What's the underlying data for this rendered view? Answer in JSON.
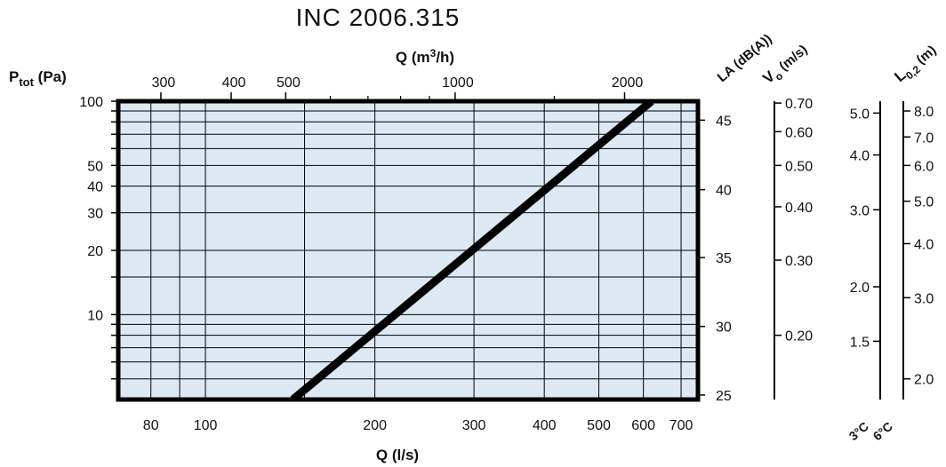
{
  "chart_data": {
    "type": "line",
    "title": "INC 2006.315",
    "scale": "log-log",
    "grid": true,
    "plot_background": "#dde8f5",
    "line_color": "#000000",
    "x_bottom": {
      "label": "Q (l/s)",
      "range": [
        70,
        750
      ],
      "ticks": [
        80,
        100,
        200,
        300,
        400,
        500,
        600,
        700
      ],
      "gridlines": [
        80,
        90,
        100,
        150,
        200,
        300,
        400,
        500,
        600,
        700
      ]
    },
    "x_top": {
      "label_base": "Q (m",
      "label_sup": "3",
      "label_tail": "/h)",
      "ticks": [
        300,
        400,
        500,
        1000,
        2000
      ],
      "minor_ticks": [
        600,
        700,
        800,
        900,
        1500
      ]
    },
    "y_left": {
      "label_base": "P",
      "label_sub": "tot",
      "label_tail": " (Pa)",
      "range": [
        4,
        100
      ],
      "ticks": [
        10,
        20,
        30,
        40,
        50,
        100
      ],
      "gridlines": [
        5,
        6,
        7,
        8,
        9,
        10,
        15,
        20,
        30,
        40,
        50,
        60,
        70,
        80,
        90,
        100
      ]
    },
    "la_scale": {
      "label": "LA (dB(A))",
      "ticks": [
        {
          "label": "45",
          "p": 81.5
        },
        {
          "label": "40",
          "p": 38.5
        },
        {
          "label": "35",
          "p": 18.5
        },
        {
          "label": "30",
          "p": 8.8
        },
        {
          "label": "25",
          "p": 4.2
        }
      ]
    },
    "v0_scale": {
      "label_base": "V",
      "label_sub": "o",
      "label_tail": " (m/s)",
      "ticks": [
        {
          "label": "0.70",
          "p": 98
        },
        {
          "label": "0.60",
          "p": 72
        },
        {
          "label": "0.50",
          "p": 50
        },
        {
          "label": "0.40",
          "p": 32
        },
        {
          "label": "0.30",
          "p": 18
        },
        {
          "label": "0.20",
          "p": 8
        }
      ]
    },
    "l3_scale": {
      "label": "3°C",
      "ticks": [
        {
          "label": "5.0",
          "p": 88
        },
        {
          "label": "4.0",
          "p": 56
        },
        {
          "label": "3.0",
          "p": 31
        },
        {
          "label": "2.0",
          "p": 13.5
        },
        {
          "label": "1.5",
          "p": 7.5
        }
      ]
    },
    "l6_scale": {
      "label": "6°C",
      "header_base": "L",
      "header_sub": "0,2",
      "header_tail": " (m)",
      "ticks": [
        {
          "label": "8.0",
          "p": 90
        },
        {
          "label": "7.0",
          "p": 68
        },
        {
          "label": "6.0",
          "p": 50
        },
        {
          "label": "5.0",
          "p": 34
        },
        {
          "label": "4.0",
          "p": 21.5
        },
        {
          "label": "3.0",
          "p": 12
        },
        {
          "label": "2.0",
          "p": 5
        }
      ]
    },
    "series": [
      {
        "x": [
          143,
          620
        ],
        "y": [
          4,
          100
        ]
      }
    ]
  }
}
